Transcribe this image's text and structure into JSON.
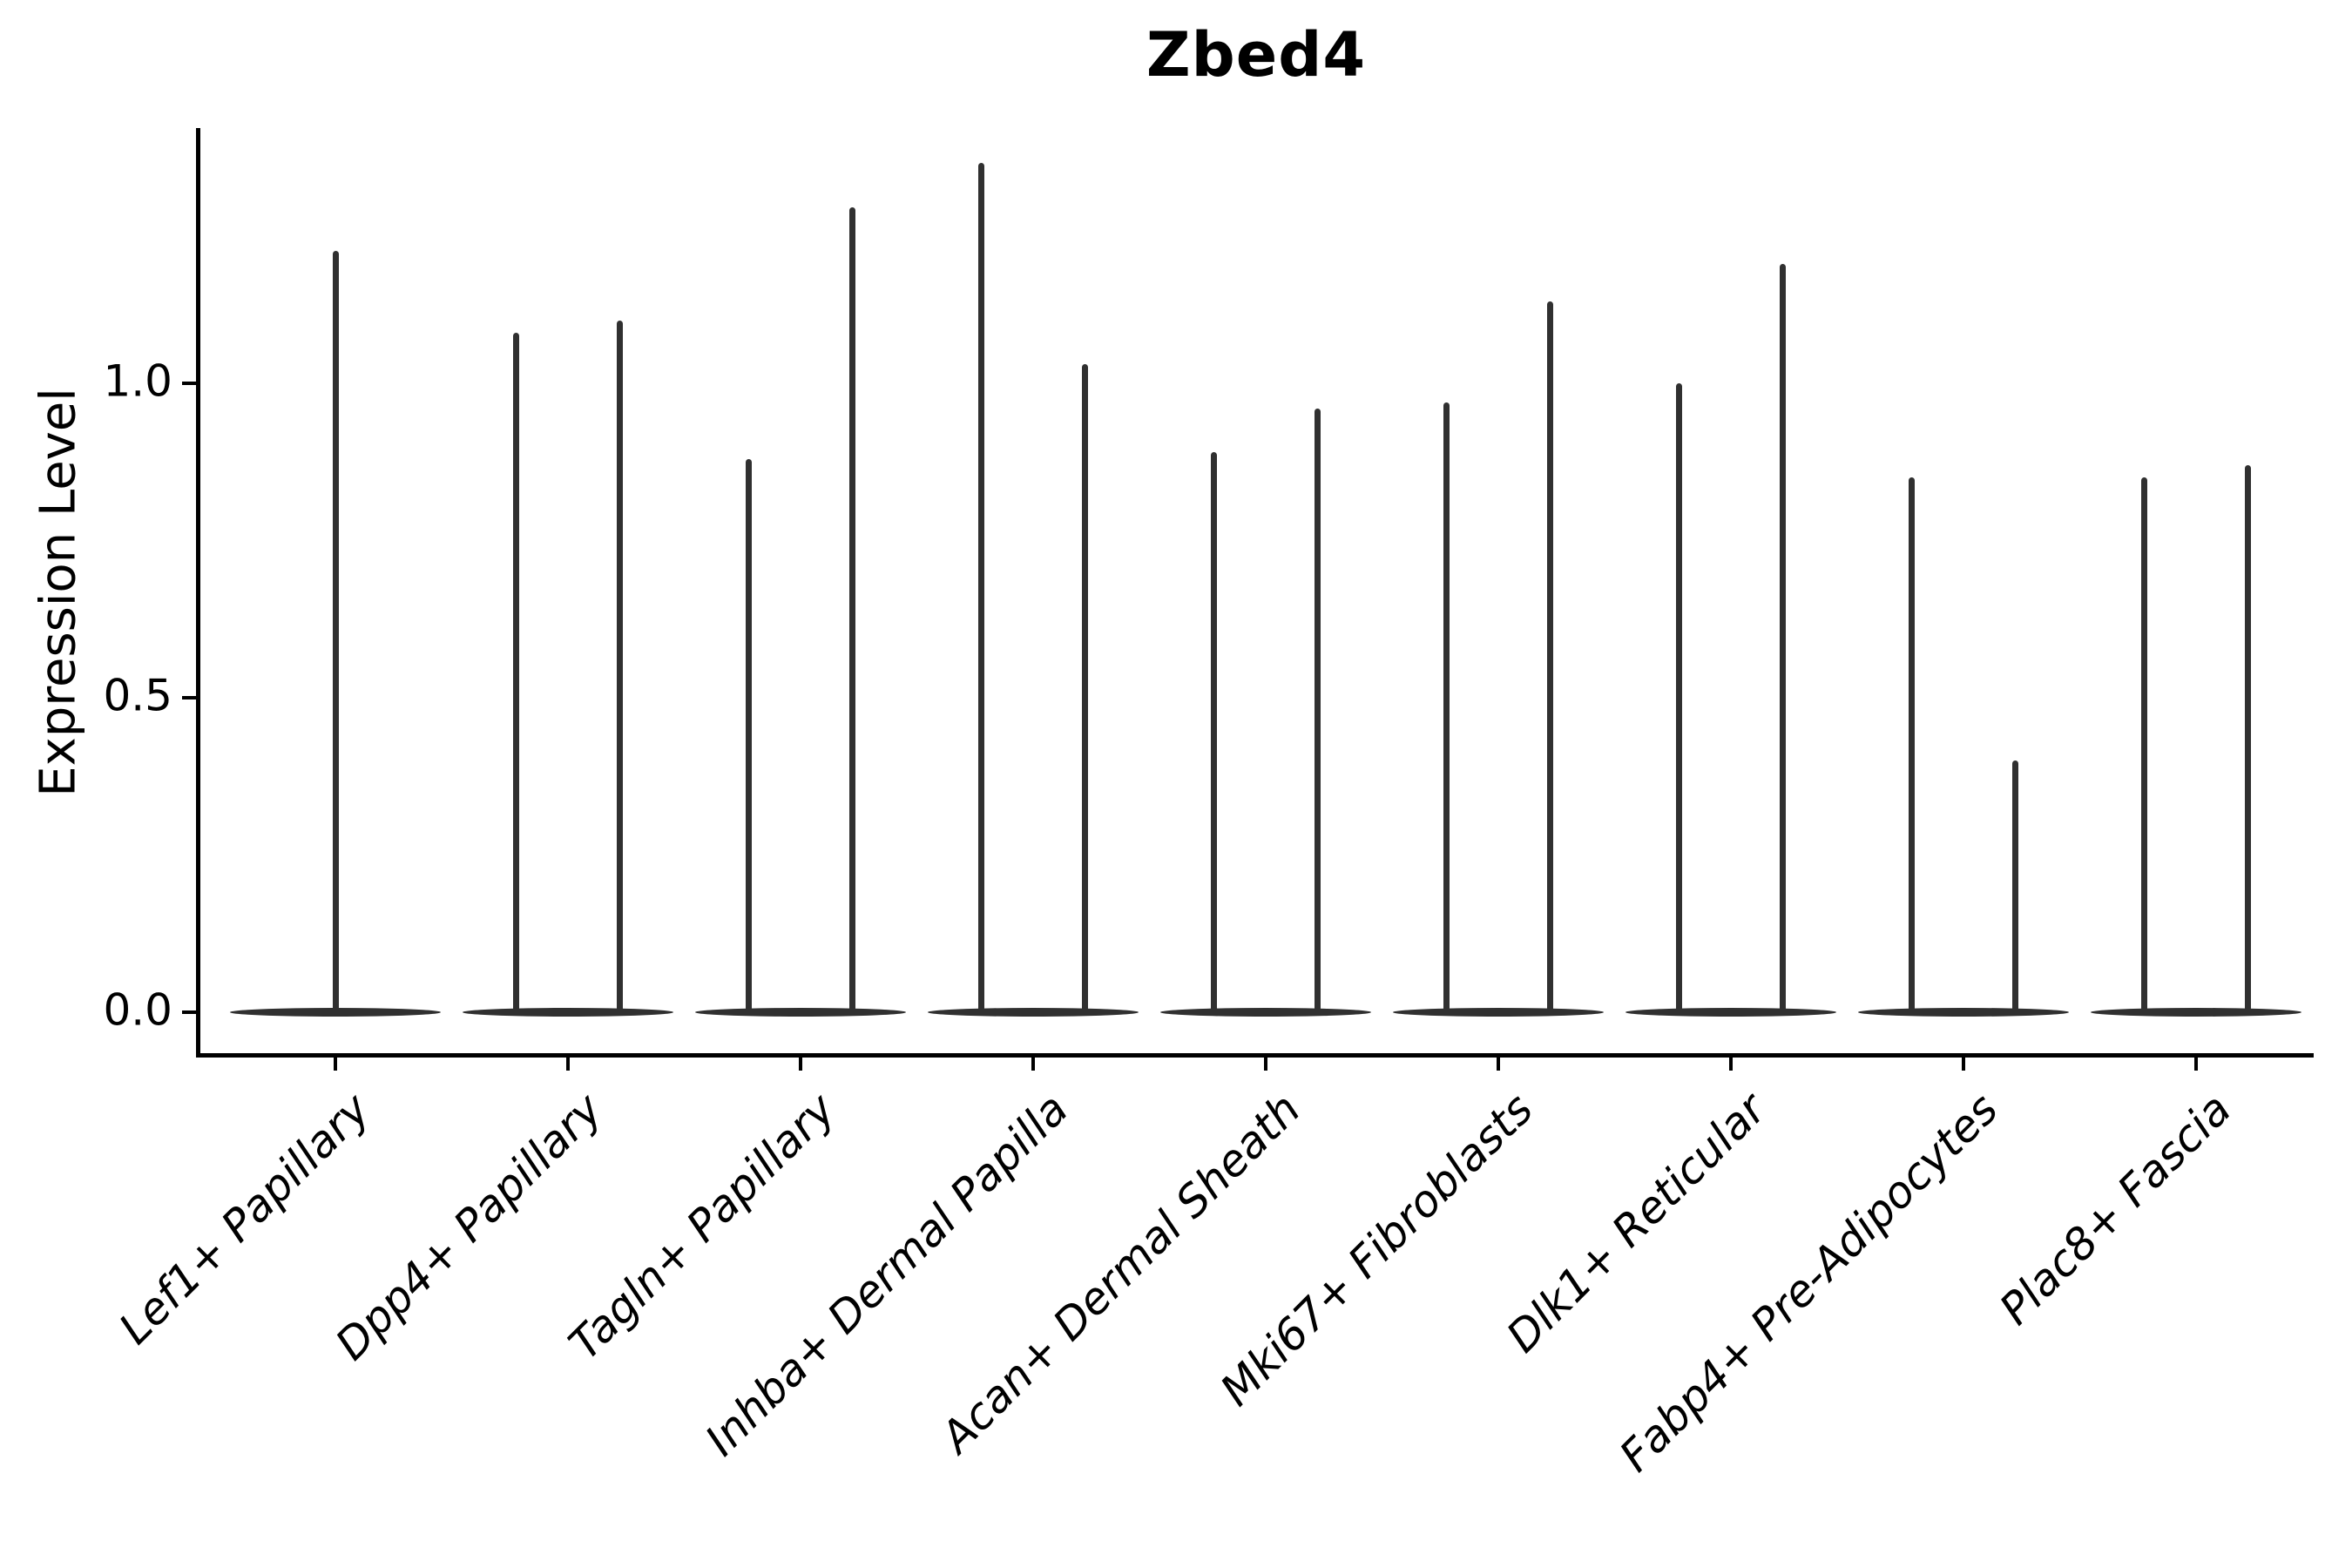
{
  "chart_data": {
    "type": "violin",
    "title": "Zbed4",
    "xlabel": "",
    "ylabel": "Expression Level",
    "ytick_labels": [
      "0.0",
      "0.5",
      "1.0"
    ],
    "yticks": [
      0.0,
      0.5,
      1.0
    ],
    "ylim": [
      -0.07,
      1.41
    ],
    "grid": false,
    "legend_position": "none",
    "violin_color": "#303030",
    "axis_color": "#000000",
    "categories": [
      "Lef1+ Papillary",
      "Dpp4+ Papillary",
      "Tagln+ Papillary",
      "Inhba+ Dermal Papilla",
      "Acan+ Dermal Sheath",
      "Mki67+ Fibroblasts",
      "Dlk1+ Reticular",
      "Fabp4+ Pre-Adipocytes",
      "Plac8+ Fascia"
    ],
    "violins": [
      {
        "category": "Lef1+ Papillary",
        "max_values": [
          1.21
        ]
      },
      {
        "category": "Dpp4+ Papillary",
        "max_values": [
          1.08,
          1.1
        ]
      },
      {
        "category": "Tagln+ Papillary",
        "max_values": [
          0.88,
          1.28
        ]
      },
      {
        "category": "Inhba+ Dermal Papilla",
        "max_values": [
          1.35,
          1.03
        ]
      },
      {
        "category": "Acan+ Dermal Sheath",
        "max_values": [
          0.89,
          0.96
        ]
      },
      {
        "category": "Mki67+ Fibroblasts",
        "max_values": [
          0.97,
          1.13
        ]
      },
      {
        "category": "Dlk1+ Reticular",
        "max_values": [
          1.0,
          1.19
        ]
      },
      {
        "category": "Fabp4+ Pre-Adipocytes",
        "max_values": [
          0.85,
          0.4
        ]
      },
      {
        "category": "Plac8+ Fascia",
        "max_values": [
          0.85,
          0.87
        ]
      }
    ],
    "shape_note": "Each violin is a flat wide lens at expression 0 with a thin vertical tail reaching its max value"
  }
}
